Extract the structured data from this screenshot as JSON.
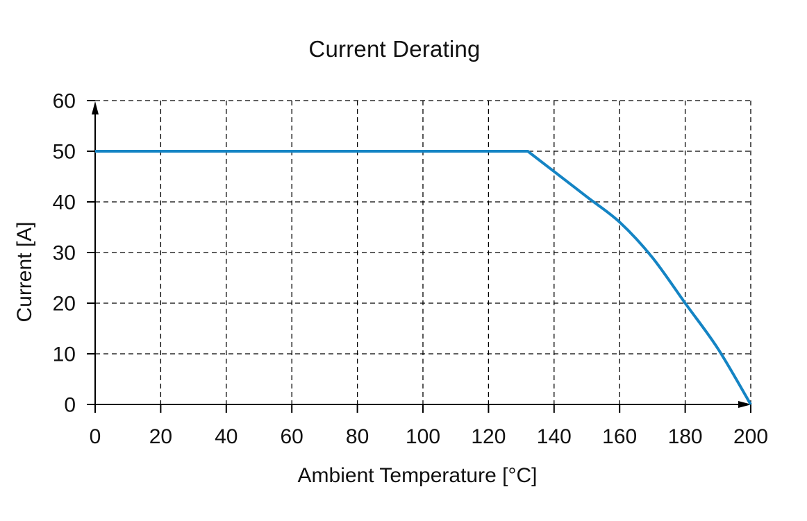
{
  "chart_data": {
    "type": "line",
    "title": "Current Derating",
    "xlabel": "Ambient Temperature [°C]",
    "ylabel": "Current [A]",
    "xlim": [
      0,
      200
    ],
    "ylim": [
      0,
      60
    ],
    "x_ticks": [
      0,
      20,
      40,
      60,
      80,
      100,
      120,
      140,
      160,
      180,
      200
    ],
    "y_ticks": [
      0,
      10,
      20,
      30,
      40,
      50,
      60
    ],
    "grid": "dashed-both-axes",
    "legend": "none",
    "axis_arrows": "up-arrow-on-y-axis, right-arrow-on-x-axis",
    "colors": {
      "line": "#1484c4",
      "grid": "#000000",
      "axis": "#000000",
      "text": "#111111",
      "background": "#ffffff"
    },
    "series": [
      {
        "name": "Current derating curve",
        "points": [
          [
            0,
            50
          ],
          [
            132,
            50
          ],
          [
            140,
            46
          ],
          [
            150,
            41
          ],
          [
            160,
            36
          ],
          [
            170,
            29
          ],
          [
            180,
            20
          ],
          [
            190,
            11
          ],
          [
            200,
            0
          ]
        ]
      }
    ]
  }
}
